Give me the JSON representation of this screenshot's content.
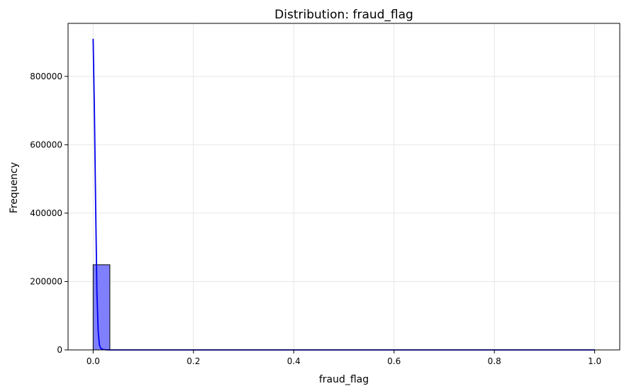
{
  "chart_data": {
    "type": "bar",
    "title": "Distribution: fraud_flag",
    "xlabel": "fraud_flag",
    "ylabel": "Frequency",
    "xlim": [
      -0.05,
      1.05
    ],
    "ylim": [
      0,
      955000
    ],
    "x_ticks": [
      0.0,
      0.2,
      0.4,
      0.6,
      0.8,
      1.0
    ],
    "x_tick_labels": [
      "0.0",
      "0.2",
      "0.4",
      "0.6",
      "0.8",
      "1.0"
    ],
    "y_ticks": [
      0,
      200000,
      400000,
      600000,
      800000
    ],
    "y_tick_labels": [
      "0",
      "200000",
      "400000",
      "600000",
      "800000"
    ],
    "grid": true,
    "bars": [
      {
        "x_start": 0.0,
        "x_end": 0.0333,
        "value": 249000
      }
    ],
    "kde_line": {
      "x": [
        0.0,
        0.0025,
        0.005,
        0.0075,
        0.01,
        0.0125,
        0.015,
        0.02,
        0.03,
        0.05,
        0.1,
        0.3,
        0.5,
        0.7,
        0.9,
        1.0
      ],
      "y": [
        910000,
        700000,
        420000,
        170000,
        55000,
        15000,
        5000,
        1000,
        0,
        0,
        0,
        0,
        0,
        0,
        0,
        0
      ]
    },
    "colors": {
      "bar_fill": "#8080ff",
      "bar_edge": "#000000",
      "line": "#0000ee",
      "grid": "#e6e6e6"
    }
  }
}
